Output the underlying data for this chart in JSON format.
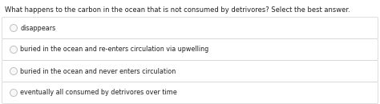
{
  "question": "What happens to the carbon in the ocean that is not consumed by detrivores? Select the best answer.",
  "options": [
    "disappears",
    "buried in the ocean and re-enters circulation via upwelling",
    "buried in the ocean and never enters circulation",
    "eventually all consumed by detrivores over time"
  ],
  "background_color": "#ffffff",
  "box_color": "#ffffff",
  "box_border_color": "#d0d0d0",
  "question_fontsize": 6.0,
  "option_fontsize": 5.8,
  "text_color": "#222222",
  "radio_color": "#c0c0c0",
  "radio_fill": "#f8f8f8"
}
